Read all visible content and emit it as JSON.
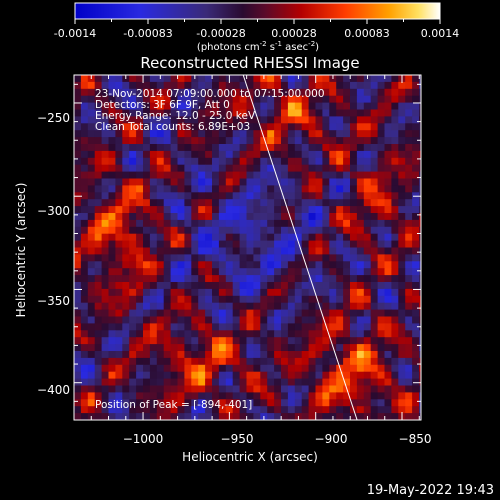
{
  "colorbar": {
    "ticks": [
      "-0.0014",
      "-0.00083",
      "-0.00028",
      "0.00028",
      "0.00083",
      "0.0014"
    ],
    "units_prefix": "(photons cm",
    "units_exp1": "-2",
    "units_mid": " s",
    "units_exp2": "-1",
    "units_mid2": " asec",
    "units_exp3": "-2",
    "units_suffix": ")"
  },
  "chart_data": {
    "type": "heatmap",
    "title": "Reconstructed RHESSI Image",
    "xlabel": "Heliocentric X (arcsec)",
    "ylabel": "Heliocentric Y (arcsec)",
    "xlim": [
      -1040,
      -839
    ],
    "ylim": [
      -420,
      -235
    ],
    "x_ticks": [
      -1000,
      -950,
      -900,
      -850
    ],
    "y_ticks": [
      -250,
      -300,
      -350,
      -400
    ],
    "x_tick_labels": [
      "−1000",
      "−950",
      "−900",
      "−850"
    ],
    "y_tick_labels": [
      "−250",
      "−300",
      "−350",
      "−400"
    ],
    "color_range": [
      -0.0014,
      0.0014
    ],
    "limb_line": [
      [
        -942,
        -235
      ],
      [
        -876,
        -420
      ]
    ],
    "annotations": [
      "23-Nov-2014 07:09:00.000 to 07:15:00.000",
      "Detectors: 3F 6F 9F, Att 0",
      "Energy Range: 12.0 - 25.0 keV",
      "Clean    Total counts: 6.89E+03"
    ],
    "peak_label": "Position of Peak = [-894,-401]",
    "peak": [
      -894,
      -401
    ]
  },
  "footer": {
    "timestamp": "19-May-2022 19:43"
  }
}
